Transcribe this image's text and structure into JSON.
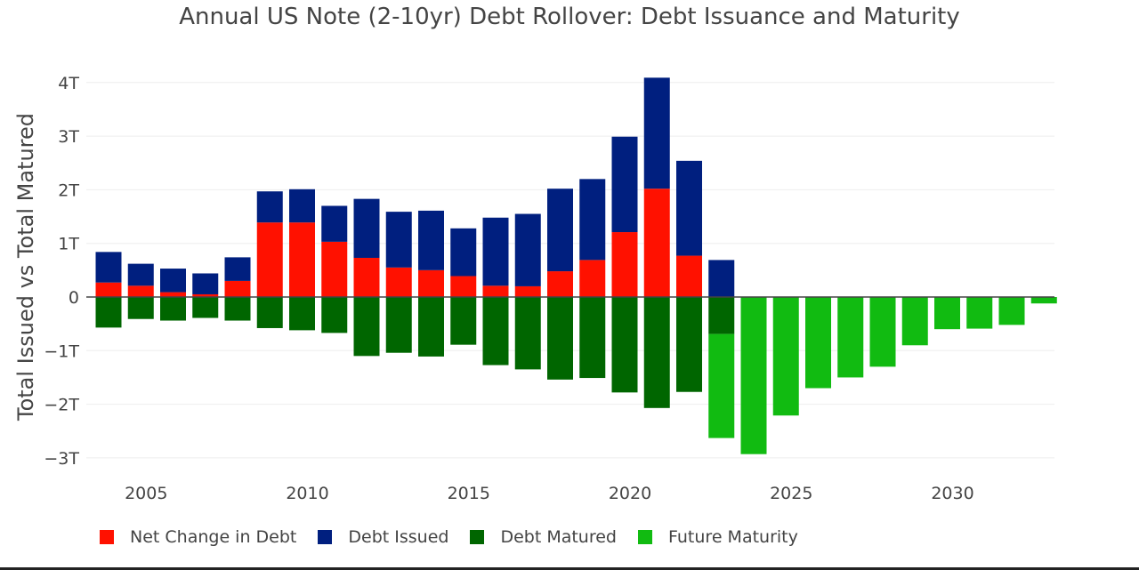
{
  "chart_data": {
    "type": "bar",
    "barmode": "relative",
    "title": "Annual US Note (2-10yr) Debt Rollover: Debt Issuance and Maturity",
    "xlabel": "",
    "ylabel": "Total Issued vs Total Matured",
    "x_ticks": [
      2005,
      2010,
      2015,
      2020,
      2025,
      2030
    ],
    "x_range": [
      2003.5,
      2033.6
    ],
    "y_ticks": [
      {
        "value": 4,
        "label": "4T"
      },
      {
        "value": 3,
        "label": "3T"
      },
      {
        "value": 2,
        "label": "2T"
      },
      {
        "value": 1,
        "label": "1T"
      },
      {
        "value": 0,
        "label": "0"
      },
      {
        "value": -1,
        "label": "−1T"
      },
      {
        "value": -2,
        "label": "−2T"
      },
      {
        "value": -3,
        "label": "−3T"
      }
    ],
    "ylim": [
      -3.3,
      4.1
    ],
    "grid": true,
    "legend_position": "bottom",
    "series": [
      {
        "name": "Net Change in Debt",
        "color": "#ff1100",
        "stack": "positive",
        "points": [
          [
            2004,
            0.27
          ],
          [
            2005,
            0.21
          ],
          [
            2006,
            0.09
          ],
          [
            2007,
            0.05
          ],
          [
            2008,
            0.3
          ],
          [
            2009,
            1.39
          ],
          [
            2010,
            1.39
          ],
          [
            2011,
            1.03
          ],
          [
            2012,
            0.73
          ],
          [
            2013,
            0.55
          ],
          [
            2014,
            0.5
          ],
          [
            2015,
            0.39
          ],
          [
            2016,
            0.21
          ],
          [
            2017,
            0.2
          ],
          [
            2018,
            0.48
          ],
          [
            2019,
            0.69
          ],
          [
            2020,
            1.21
          ],
          [
            2021,
            2.02
          ],
          [
            2022,
            0.77
          ]
        ]
      },
      {
        "name": "Debt Issued",
        "color": "#001f7f",
        "stack": "positive",
        "points": [
          [
            2004,
            0.57
          ],
          [
            2005,
            0.41
          ],
          [
            2006,
            0.44
          ],
          [
            2007,
            0.39
          ],
          [
            2008,
            0.44
          ],
          [
            2009,
            0.58
          ],
          [
            2010,
            0.62
          ],
          [
            2011,
            0.67
          ],
          [
            2012,
            1.1
          ],
          [
            2013,
            1.04
          ],
          [
            2014,
            1.11
          ],
          [
            2015,
            0.89
          ],
          [
            2016,
            1.27
          ],
          [
            2017,
            1.35
          ],
          [
            2018,
            1.54
          ],
          [
            2019,
            1.51
          ],
          [
            2020,
            1.78
          ],
          [
            2021,
            2.07
          ],
          [
            2022,
            1.77
          ],
          [
            2023,
            0.69
          ]
        ]
      },
      {
        "name": "Debt Matured",
        "color": "#006600",
        "stack": "negative",
        "points": [
          [
            2004,
            -0.57
          ],
          [
            2005,
            -0.41
          ],
          [
            2006,
            -0.44
          ],
          [
            2007,
            -0.39
          ],
          [
            2008,
            -0.44
          ],
          [
            2009,
            -0.58
          ],
          [
            2010,
            -0.62
          ],
          [
            2011,
            -0.67
          ],
          [
            2012,
            -1.1
          ],
          [
            2013,
            -1.04
          ],
          [
            2014,
            -1.11
          ],
          [
            2015,
            -0.89
          ],
          [
            2016,
            -1.27
          ],
          [
            2017,
            -1.35
          ],
          [
            2018,
            -1.54
          ],
          [
            2019,
            -1.51
          ],
          [
            2020,
            -1.78
          ],
          [
            2021,
            -2.07
          ],
          [
            2022,
            -1.77
          ],
          [
            2023,
            -0.69
          ]
        ]
      },
      {
        "name": "Future Maturity",
        "color": "#11bb11",
        "stack": "negative",
        "points": [
          [
            2023,
            -1.94
          ],
          [
            2024,
            -2.93
          ],
          [
            2025,
            -2.21
          ],
          [
            2026,
            -1.7
          ],
          [
            2027,
            -1.5
          ],
          [
            2028,
            -1.3
          ],
          [
            2029,
            -0.9
          ],
          [
            2030,
            -0.6
          ],
          [
            2031,
            -0.59
          ],
          [
            2032,
            -0.52
          ],
          [
            2033,
            -0.12
          ]
        ]
      }
    ]
  }
}
